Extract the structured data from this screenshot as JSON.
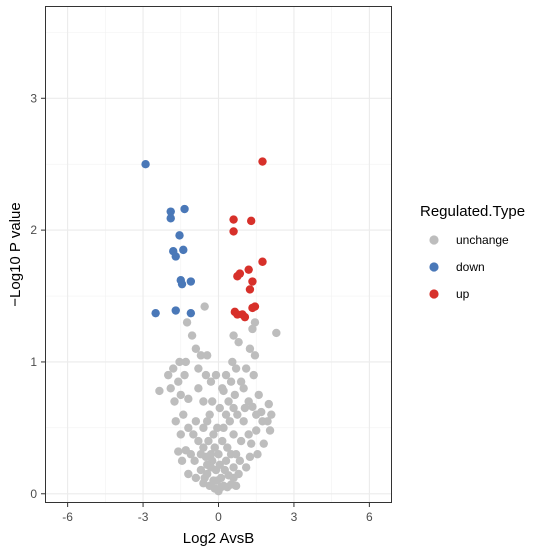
{
  "chart_data": {
    "type": "scatter",
    "title": "",
    "xlabel": "Log2 AvsB",
    "ylabel": "−Log10 P value",
    "xlim": [
      -6.9,
      6.9
    ],
    "ylim": [
      -0.07,
      3.7
    ],
    "xticks": [
      -6,
      -3,
      0,
      3,
      6
    ],
    "xtick_labels": [
      "-6",
      "-3",
      "0",
      "3",
      "6"
    ],
    "yticks": [
      0,
      1,
      2,
      3
    ],
    "ytick_labels": [
      "0",
      "1",
      "2",
      "3"
    ],
    "grid": true,
    "legend": {
      "title": "Regulated.Type",
      "position": "right",
      "entries": [
        {
          "label": "unchange",
          "color": "#bdbdbd"
        },
        {
          "label": "down",
          "color": "#4a78b8"
        },
        {
          "label": "up",
          "color": "#d7302a"
        }
      ]
    },
    "series": [
      {
        "name": "down",
        "color": "#4a78b8",
        "points": [
          [
            -2.9,
            2.5
          ],
          [
            -1.9,
            2.14
          ],
          [
            -1.9,
            2.09
          ],
          [
            -1.35,
            2.16
          ],
          [
            -1.55,
            1.96
          ],
          [
            -1.8,
            1.84
          ],
          [
            -1.7,
            1.8
          ],
          [
            -1.4,
            1.85
          ],
          [
            -1.5,
            1.62
          ],
          [
            -1.45,
            1.59
          ],
          [
            -1.1,
            1.61
          ],
          [
            -2.5,
            1.37
          ],
          [
            -1.7,
            1.39
          ],
          [
            -1.1,
            1.37
          ]
        ]
      },
      {
        "name": "up",
        "color": "#d7302a",
        "points": [
          [
            1.75,
            2.52
          ],
          [
            0.6,
            2.08
          ],
          [
            0.6,
            1.99
          ],
          [
            1.3,
            2.07
          ],
          [
            1.75,
            1.76
          ],
          [
            1.2,
            1.7
          ],
          [
            0.85,
            1.67
          ],
          [
            0.75,
            1.65
          ],
          [
            1.35,
            1.61
          ],
          [
            1.25,
            1.55
          ],
          [
            1.45,
            1.42
          ],
          [
            1.35,
            1.41
          ],
          [
            0.65,
            1.38
          ],
          [
            0.75,
            1.36
          ],
          [
            0.95,
            1.36
          ],
          [
            1.05,
            1.34
          ]
        ]
      },
      {
        "name": "unchange",
        "color": "#bdbdbd",
        "points": [
          [
            -0.55,
            1.42
          ],
          [
            2.3,
            1.22
          ],
          [
            1.45,
            1.3
          ],
          [
            1.35,
            1.25
          ],
          [
            0.8,
            1.15
          ],
          [
            0.6,
            1.2
          ],
          [
            -1.25,
            1.3
          ],
          [
            -1.05,
            1.2
          ],
          [
            -0.9,
            1.1
          ],
          [
            -0.45,
            1.05
          ],
          [
            -0.7,
            1.05
          ],
          [
            -1.3,
            1.0
          ],
          [
            -1.55,
            1.0
          ],
          [
            -1.8,
            0.95
          ],
          [
            -0.5,
            0.9
          ],
          [
            -2.35,
            0.78
          ],
          [
            -1.9,
            0.8
          ],
          [
            -1.6,
            0.85
          ],
          [
            -1.5,
            0.75
          ],
          [
            -1.2,
            0.72
          ],
          [
            -0.8,
            0.8
          ],
          [
            -0.3,
            0.85
          ],
          [
            -0.6,
            0.7
          ],
          [
            0.3,
            0.9
          ],
          [
            0.55,
            1.0
          ],
          [
            0.7,
            0.95
          ],
          [
            0.9,
            0.85
          ],
          [
            1.0,
            0.8
          ],
          [
            1.1,
            0.95
          ],
          [
            0.4,
            0.7
          ],
          [
            0.2,
            0.78
          ],
          [
            0.6,
            0.65
          ],
          [
            0.75,
            0.6
          ],
          [
            1.2,
            0.7
          ],
          [
            1.35,
            0.66
          ],
          [
            1.5,
            0.6
          ],
          [
            1.7,
            0.62
          ],
          [
            2.0,
            0.68
          ],
          [
            1.75,
            0.55
          ],
          [
            1.5,
            0.48
          ],
          [
            1.95,
            0.55
          ],
          [
            2.05,
            0.48
          ],
          [
            1.8,
            0.38
          ],
          [
            1.2,
            0.45
          ],
          [
            1.0,
            0.55
          ],
          [
            1.3,
            0.38
          ],
          [
            0.9,
            0.4
          ],
          [
            0.6,
            0.45
          ],
          [
            0.45,
            0.55
          ],
          [
            0.3,
            0.6
          ],
          [
            -1.4,
            0.6
          ],
          [
            -1.7,
            0.55
          ],
          [
            -1.5,
            0.45
          ],
          [
            -1.2,
            0.5
          ],
          [
            -0.9,
            0.55
          ],
          [
            -1.0,
            0.45
          ],
          [
            -0.8,
            0.4
          ],
          [
            -0.6,
            0.5
          ],
          [
            -0.45,
            0.55
          ],
          [
            -0.35,
            0.6
          ],
          [
            -1.6,
            0.32
          ],
          [
            -1.3,
            0.33
          ],
          [
            -1.1,
            0.3
          ],
          [
            -1.45,
            0.25
          ],
          [
            -0.95,
            0.25
          ],
          [
            -0.7,
            0.3
          ],
          [
            -0.6,
            0.35
          ],
          [
            -0.5,
            0.28
          ],
          [
            -0.4,
            0.4
          ],
          [
            -0.3,
            0.3
          ],
          [
            -0.2,
            0.45
          ],
          [
            -0.15,
            0.35
          ],
          [
            0.15,
            0.4
          ],
          [
            0.2,
            0.5
          ],
          [
            0.35,
            0.35
          ],
          [
            0.5,
            0.3
          ],
          [
            0.7,
            0.3
          ],
          [
            0.85,
            0.25
          ],
          [
            1.1,
            0.2
          ],
          [
            1.25,
            0.28
          ],
          [
            1.55,
            0.3
          ],
          [
            -1.2,
            0.15
          ],
          [
            -0.9,
            0.12
          ],
          [
            -0.7,
            0.18
          ],
          [
            -0.45,
            0.15
          ],
          [
            -0.3,
            0.2
          ],
          [
            -0.2,
            0.1
          ],
          [
            -0.1,
            0.18
          ],
          [
            0.05,
            0.22
          ],
          [
            0.1,
            0.12
          ],
          [
            0.25,
            0.18
          ],
          [
            0.4,
            0.14
          ],
          [
            0.6,
            0.12
          ],
          [
            0.8,
            0.15
          ],
          [
            -0.6,
            0.08
          ],
          [
            -0.35,
            0.06
          ],
          [
            -0.15,
            0.04
          ],
          [
            0.0,
            0.02
          ],
          [
            0.1,
            0.05
          ],
          [
            0.2,
            0.06
          ],
          [
            0.35,
            0.05
          ],
          [
            0.5,
            0.07
          ],
          [
            -0.05,
            0.1
          ],
          [
            0.0,
            0.3
          ],
          [
            -0.05,
            0.5
          ],
          [
            0.05,
            0.65
          ],
          [
            -0.25,
            0.7
          ],
          [
            0.15,
            0.8
          ],
          [
            -0.1,
            0.9
          ],
          [
            0.5,
            0.85
          ],
          [
            -0.8,
            0.95
          ],
          [
            1.4,
            0.9
          ],
          [
            1.25,
            1.1
          ],
          [
            1.45,
            1.05
          ],
          [
            -1.35,
            0.9
          ],
          [
            -2.0,
            0.9
          ],
          [
            -1.75,
            0.7
          ],
          [
            0.65,
            0.75
          ],
          [
            1.05,
            0.65
          ],
          [
            -0.25,
            0.25
          ],
          [
            0.3,
            0.25
          ],
          [
            -0.45,
            0.22
          ],
          [
            0.6,
            0.2
          ],
          [
            -0.55,
            0.12
          ],
          [
            0.7,
            0.06
          ],
          [
            1.6,
            0.75
          ],
          [
            2.1,
            0.6
          ]
        ]
      }
    ]
  }
}
